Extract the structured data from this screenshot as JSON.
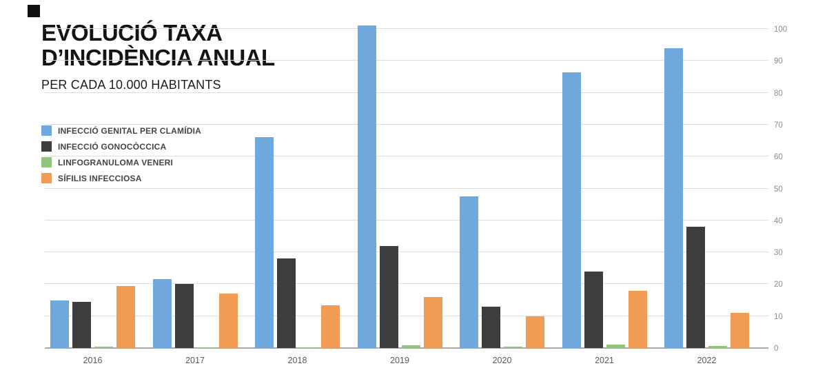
{
  "header": {
    "title_line1": "EVOLUCIÓ TAXA",
    "title_line2": "D’INCIDÈNCIA ANUAL",
    "subtitle": "PER CADA 10.000 HABITANTS"
  },
  "legend": {
    "items": [
      {
        "label": "INFECCIÓ GENITAL PER CLAMÍDIA",
        "color": "#6FA8DC"
      },
      {
        "label": "INFECCIÓ GONOCÒCCICA",
        "color": "#3D3D3D"
      },
      {
        "label": "LINFOGRANULOMA VENERI",
        "color": "#93C47D"
      },
      {
        "label": "SÍFILIS INFECCIOSA",
        "color": "#F09C55"
      }
    ]
  },
  "chart_data": {
    "type": "bar",
    "title": "EVOLUCIÓ TAXA D’INCIDÈNCIA ANUAL",
    "subtitle": "PER CADA 10.000 HABITANTS",
    "categories": [
      "2016",
      "2017",
      "2018",
      "2019",
      "2020",
      "2021",
      "2022"
    ],
    "series": [
      {
        "name": "INFECCIÓ GENITAL PER CLAMÍDIA",
        "color": "#6FA8DC",
        "values": [
          15,
          21.5,
          66,
          101,
          47.5,
          86.5,
          94
        ]
      },
      {
        "name": "INFECCIÓ GONOCÒCCICA",
        "color": "#3D3D3D",
        "values": [
          14.5,
          20,
          28,
          32,
          13,
          24,
          38
        ]
      },
      {
        "name": "LINFOGRANULOMA VENERI",
        "color": "#93C47D",
        "values": [
          0.4,
          0.3,
          0.2,
          0.8,
          0.5,
          1,
          0.6
        ]
      },
      {
        "name": "SÍFILIS INFECCIOSA",
        "color": "#F09C55",
        "values": [
          19.5,
          17,
          13.5,
          16,
          10,
          18,
          11
        ]
      }
    ],
    "ylim": [
      0,
      100
    ],
    "yticks": [
      0,
      10,
      20,
      30,
      40,
      50,
      60,
      70,
      80,
      90,
      100
    ],
    "grid": true,
    "legend_position": "left",
    "y_axis_position": "right"
  }
}
